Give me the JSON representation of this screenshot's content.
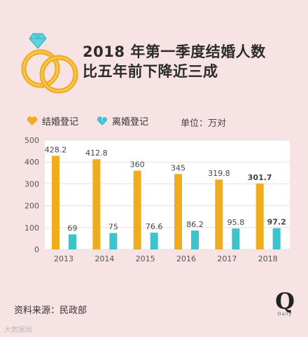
{
  "header": {
    "title_line1": "2018 年第一季度结婚人数",
    "title_line2": "比五年前下降近三成",
    "icon": "diamond-rings-icon"
  },
  "legend": {
    "marriage_label": "结婚登记",
    "divorce_label": "离婚登记",
    "unit_label": "单位：万对"
  },
  "footer": {
    "source": "资料来源：民政部",
    "logo_letter": "Q",
    "logo_sub": "Daily",
    "watermark": "大数据局"
  },
  "colors": {
    "background": "#f7e3e4",
    "marriage": "#f0ac1f",
    "divorce": "#3cc3cc",
    "plot_bg": "#ffffff",
    "grid": "#e2e2e2"
  },
  "chart_data": {
    "type": "bar",
    "categories": [
      "2013",
      "2014",
      "2015",
      "2016",
      "2017",
      "2018"
    ],
    "series": [
      {
        "name": "结婚登记",
        "values": [
          428.2,
          412.8,
          360,
          345,
          319.8,
          301.7
        ],
        "labels": [
          "428.2",
          "412.8",
          "360",
          "345",
          "319.8",
          "301.7"
        ]
      },
      {
        "name": "离婚登记",
        "values": [
          69,
          75,
          76.6,
          86.2,
          95.8,
          97.2
        ],
        "labels": [
          "69",
          "75",
          "76.6",
          "86.2",
          "95.8",
          "97.2"
        ]
      }
    ],
    "ylim": [
      0,
      500
    ],
    "yticks": [
      0,
      100,
      200,
      300,
      400,
      500
    ],
    "grid": true,
    "legend_position": "top-left",
    "highlight_category": "2018"
  }
}
